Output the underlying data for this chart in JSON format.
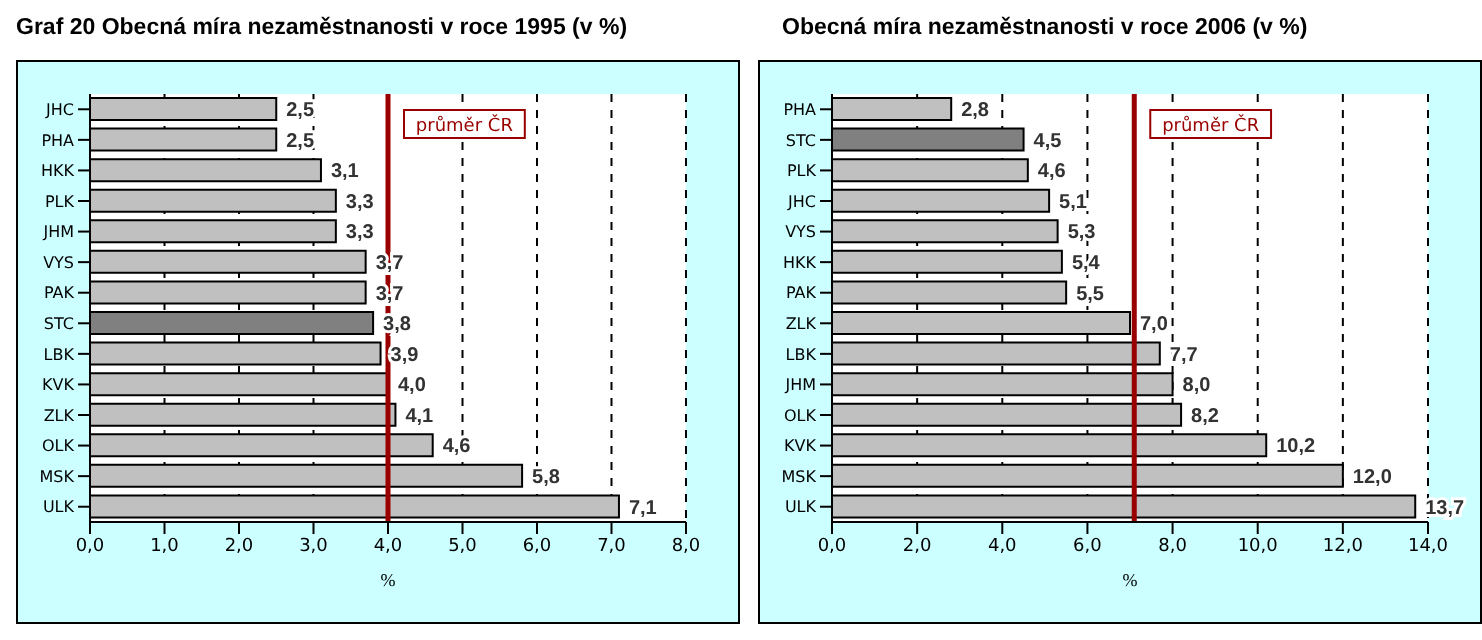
{
  "chart_data": [
    {
      "type": "bar",
      "orientation": "horizontal",
      "title": "Graf 20 Obecná míra nezaměstnanosti v roce 1995 (v %)",
      "xlabel": "%",
      "categories": [
        "JHC",
        "PHA",
        "HKK",
        "PLK",
        "JHM",
        "VYS",
        "PAK",
        "STC",
        "LBK",
        "KVK",
        "ZLK",
        "OLK",
        "MSK",
        "ULK"
      ],
      "values": [
        2.5,
        2.5,
        3.1,
        3.3,
        3.3,
        3.7,
        3.7,
        3.8,
        3.9,
        4.0,
        4.1,
        4.6,
        5.8,
        7.1
      ],
      "value_labels": [
        "2,5",
        "2,5",
        "3,1",
        "3,3",
        "3,3",
        "3,7",
        "3,7",
        "3,8",
        "3,9",
        "4,0",
        "4,1",
        "4,6",
        "5,8",
        "7,1"
      ],
      "colors": [
        "#c0c0c0",
        "#c0c0c0",
        "#c0c0c0",
        "#c0c0c0",
        "#c0c0c0",
        "#c0c0c0",
        "#c0c0c0",
        "#808080",
        "#c0c0c0",
        "#c0c0c0",
        "#c0c0c0",
        "#c0c0c0",
        "#c0c0c0",
        "#c0c0c0"
      ],
      "xlim": [
        0,
        8
      ],
      "xticks": [
        {
          "value": 0,
          "label": "0,0"
        },
        {
          "value": 1,
          "label": "1,0"
        },
        {
          "value": 2,
          "label": "2,0"
        },
        {
          "value": 3,
          "label": "3,0"
        },
        {
          "value": 4,
          "label": "4,0"
        },
        {
          "value": 5,
          "label": "5,0"
        },
        {
          "value": 6,
          "label": "6,0"
        },
        {
          "value": 7,
          "label": "7,0"
        },
        {
          "value": 8,
          "label": "8,0"
        }
      ],
      "ref_lines": [
        {
          "axis": "x",
          "value": 4.0,
          "label": "průměr ČR",
          "color": "#990000"
        }
      ],
      "grid": "x",
      "legend": false
    },
    {
      "type": "bar",
      "orientation": "horizontal",
      "title": "Obecná míra nezaměstnanosti v roce 2006 (v %)",
      "xlabel": "%",
      "categories": [
        "PHA",
        "STC",
        "PLK",
        "JHC",
        "VYS",
        "HKK",
        "PAK",
        "ZLK",
        "LBK",
        "JHM",
        "OLK",
        "KVK",
        "MSK",
        "ULK"
      ],
      "values": [
        2.8,
        4.5,
        4.6,
        5.1,
        5.3,
        5.4,
        5.5,
        7.0,
        7.7,
        8.0,
        8.2,
        10.2,
        12.0,
        13.7
      ],
      "value_labels": [
        "2,8",
        "4,5",
        "4,6",
        "5,1",
        "5,3",
        "5,4",
        "5,5",
        "7,0",
        "7,7",
        "8,0",
        "8,2",
        "10,2",
        "12,0",
        "13,7"
      ],
      "colors": [
        "#c0c0c0",
        "#808080",
        "#c0c0c0",
        "#c0c0c0",
        "#c0c0c0",
        "#c0c0c0",
        "#c0c0c0",
        "#c0c0c0",
        "#c0c0c0",
        "#c0c0c0",
        "#c0c0c0",
        "#c0c0c0",
        "#c0c0c0",
        "#c0c0c0"
      ],
      "xlim": [
        0,
        14
      ],
      "xticks": [
        {
          "value": 0,
          "label": "0,0"
        },
        {
          "value": 2,
          "label": "2,0"
        },
        {
          "value": 4,
          "label": "4,0"
        },
        {
          "value": 6,
          "label": "6,0"
        },
        {
          "value": 8,
          "label": "8,0"
        },
        {
          "value": 10,
          "label": "10,0"
        },
        {
          "value": 12,
          "label": "12,0"
        },
        {
          "value": 14,
          "label": "14,0"
        }
      ],
      "ref_lines": [
        {
          "axis": "x",
          "value": 7.1,
          "label": "průměr ČR",
          "color": "#990000"
        }
      ],
      "grid": "x",
      "legend": false
    }
  ]
}
